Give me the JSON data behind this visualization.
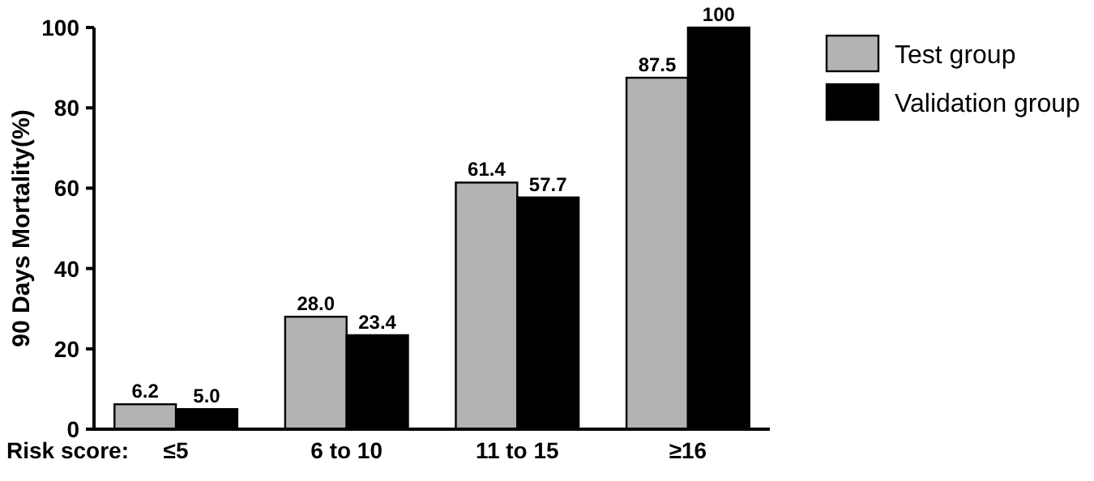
{
  "chart_data": {
    "type": "bar",
    "ylabel": "90 Days Mortality(%)",
    "xlabel": "Risk score:",
    "categories": [
      "≤5",
      "6 to 10",
      "11 to 15",
      "≥16"
    ],
    "series": [
      {
        "name": "Test group",
        "color": "#b3b3b3",
        "values": [
          6.2,
          28.0,
          61.4,
          87.5
        ],
        "value_labels": [
          "6.2",
          "28.0",
          "61.4",
          "87.5"
        ]
      },
      {
        "name": "Validation group",
        "color": "#000000",
        "values": [
          5.0,
          23.4,
          57.7,
          100
        ],
        "value_labels": [
          "5.0",
          "23.4",
          "57.7",
          "100"
        ]
      }
    ],
    "ylim": [
      0,
      100
    ],
    "yticks": [
      0,
      20,
      40,
      60,
      80,
      100
    ],
    "grid": false,
    "legend": "top right"
  }
}
